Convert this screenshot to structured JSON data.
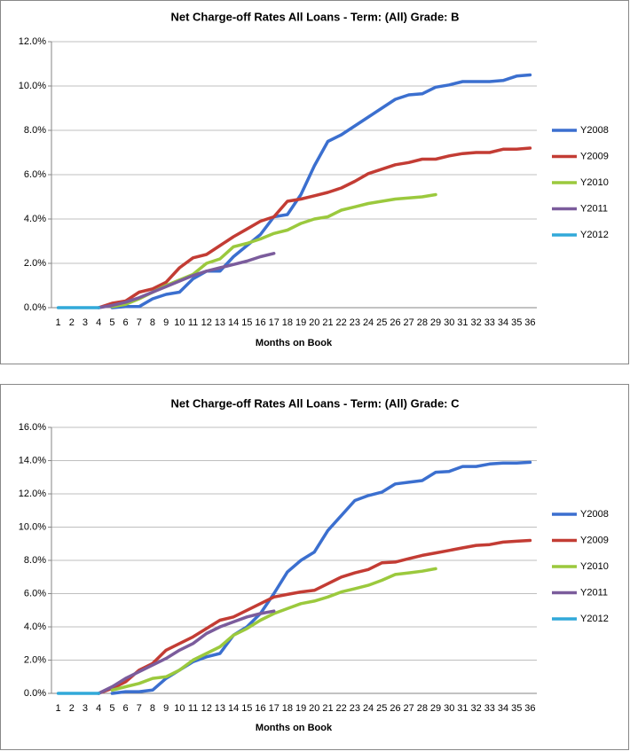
{
  "chart_data": [
    {
      "type": "line",
      "title": "Net Charge-off Rates   All Loans - Term: (All)  Grade: B",
      "x_label": "Months on Book",
      "categories": [
        1,
        2,
        3,
        4,
        5,
        6,
        7,
        8,
        9,
        10,
        11,
        12,
        13,
        14,
        15,
        16,
        17,
        18,
        19,
        20,
        21,
        22,
        23,
        24,
        25,
        26,
        27,
        28,
        29,
        30,
        31,
        32,
        33,
        34,
        35,
        36
      ],
      "ylim": [
        0,
        12
      ],
      "yticks": [
        {
          "value": 0,
          "label": "0.0%"
        },
        {
          "value": 2,
          "label": "2.0%"
        },
        {
          "value": 4,
          "label": "4.0%"
        },
        {
          "value": 6,
          "label": "6.0%"
        },
        {
          "value": 8,
          "label": "8.0%"
        },
        {
          "value": 10,
          "label": "10.0%"
        },
        {
          "value": 12,
          "label": "12.0%"
        }
      ],
      "grid": true,
      "legend": "right",
      "series": [
        {
          "name": "Y2008",
          "color": "#3b6fcf",
          "values": [
            null,
            null,
            null,
            null,
            0,
            0.05,
            0.05,
            0.4,
            0.6,
            0.7,
            1.3,
            1.65,
            1.65,
            2.3,
            2.8,
            3.3,
            4.1,
            4.2,
            5.1,
            6.4,
            7.5,
            7.8,
            8.2,
            8.6,
            9.0,
            9.4,
            9.6,
            9.65,
            9.95,
            10.05,
            10.2,
            10.2,
            10.2,
            10.25,
            10.45,
            10.5
          ]
        },
        {
          "name": "Y2009",
          "color": "#c33c34",
          "values": [
            null,
            null,
            null,
            0,
            0.2,
            0.3,
            0.7,
            0.85,
            1.15,
            1.8,
            2.25,
            2.4,
            2.8,
            3.2,
            3.55,
            3.9,
            4.1,
            4.8,
            4.9,
            5.05,
            5.2,
            5.4,
            5.7,
            6.05,
            6.25,
            6.45,
            6.55,
            6.7,
            6.7,
            6.85,
            6.95,
            7.0,
            7.0,
            7.15,
            7.15,
            7.2
          ]
        },
        {
          "name": "Y2010",
          "color": "#9bc93d",
          "values": [
            null,
            null,
            null,
            null,
            0.05,
            0.15,
            0.4,
            0.7,
            1.0,
            1.25,
            1.5,
            2.0,
            2.2,
            2.75,
            2.9,
            3.1,
            3.35,
            3.5,
            3.8,
            4.0,
            4.1,
            4.4,
            4.55,
            4.7,
            4.8,
            4.9,
            4.95,
            5.0,
            5.1,
            null,
            null,
            null,
            null,
            null,
            null,
            null
          ]
        },
        {
          "name": "Y2011",
          "color": "#7b5c9c",
          "values": [
            null,
            null,
            null,
            0,
            0.1,
            0.25,
            0.45,
            0.7,
            0.95,
            1.2,
            1.45,
            1.65,
            1.8,
            1.95,
            2.1,
            2.3,
            2.45,
            null,
            null,
            null,
            null,
            null,
            null,
            null,
            null,
            null,
            null,
            null,
            null,
            null,
            null,
            null,
            null,
            null,
            null,
            null
          ]
        },
        {
          "name": "Y2012",
          "color": "#31a9d9",
          "values": [
            0,
            0,
            0,
            0,
            null,
            null,
            null,
            null,
            null,
            null,
            null,
            null,
            null,
            null,
            null,
            null,
            null,
            null,
            null,
            null,
            null,
            null,
            null,
            null,
            null,
            null,
            null,
            null,
            null,
            null,
            null,
            null,
            null,
            null,
            null,
            null
          ]
        }
      ]
    },
    {
      "type": "line",
      "title": "Net Charge-off Rates   All Loans - Term: (All)  Grade: C",
      "x_label": "Months on Book",
      "categories": [
        1,
        2,
        3,
        4,
        5,
        6,
        7,
        8,
        9,
        10,
        11,
        12,
        13,
        14,
        15,
        16,
        17,
        18,
        19,
        20,
        21,
        22,
        23,
        24,
        25,
        26,
        27,
        28,
        29,
        30,
        31,
        32,
        33,
        34,
        35,
        36
      ],
      "ylim": [
        0,
        16
      ],
      "yticks": [
        {
          "value": 0,
          "label": "0.0%"
        },
        {
          "value": 2,
          "label": "2.0%"
        },
        {
          "value": 4,
          "label": "4.0%"
        },
        {
          "value": 6,
          "label": "6.0%"
        },
        {
          "value": 8,
          "label": "8.0%"
        },
        {
          "value": 10,
          "label": "10.0%"
        },
        {
          "value": 12,
          "label": "12.0%"
        },
        {
          "value": 14,
          "label": "14.0%"
        },
        {
          "value": 16,
          "label": "16.0%"
        }
      ],
      "grid": true,
      "legend": "right",
      "series": [
        {
          "name": "Y2008",
          "color": "#3b6fcf",
          "values": [
            null,
            null,
            null,
            null,
            0,
            0.1,
            0.1,
            0.2,
            0.9,
            1.4,
            1.9,
            2.2,
            2.4,
            3.5,
            4.0,
            4.8,
            6.0,
            7.3,
            8.0,
            8.5,
            9.8,
            10.7,
            11.6,
            11.9,
            12.1,
            12.6,
            12.7,
            12.8,
            13.3,
            13.35,
            13.65,
            13.65,
            13.8,
            13.85,
            13.85,
            13.9
          ]
        },
        {
          "name": "Y2009",
          "color": "#c33c34",
          "values": [
            null,
            null,
            null,
            0,
            0.3,
            0.7,
            1.4,
            1.8,
            2.6,
            3.0,
            3.4,
            3.9,
            4.4,
            4.6,
            5.0,
            5.4,
            5.8,
            5.95,
            6.1,
            6.2,
            6.6,
            7.0,
            7.25,
            7.45,
            7.85,
            7.9,
            8.1,
            8.3,
            8.45,
            8.6,
            8.75,
            8.9,
            8.95,
            9.1,
            9.15,
            9.2
          ]
        },
        {
          "name": "Y2010",
          "color": "#9bc93d",
          "values": [
            null,
            null,
            null,
            null,
            0.2,
            0.4,
            0.6,
            0.9,
            1.0,
            1.4,
            2.0,
            2.4,
            2.8,
            3.5,
            3.9,
            4.4,
            4.8,
            5.1,
            5.4,
            5.55,
            5.8,
            6.1,
            6.3,
            6.5,
            6.8,
            7.15,
            7.25,
            7.35,
            7.5,
            null,
            null,
            null,
            null,
            null,
            null,
            null
          ]
        },
        {
          "name": "Y2011",
          "color": "#7b5c9c",
          "values": [
            null,
            null,
            null,
            0,
            0.4,
            0.9,
            1.3,
            1.7,
            2.1,
            2.6,
            3.0,
            3.6,
            4.0,
            4.3,
            4.6,
            4.8,
            4.95,
            null,
            null,
            null,
            null,
            null,
            null,
            null,
            null,
            null,
            null,
            null,
            null,
            null,
            null,
            null,
            null,
            null,
            null,
            null
          ]
        },
        {
          "name": "Y2012",
          "color": "#31a9d9",
          "values": [
            0,
            0,
            0,
            0,
            null,
            null,
            null,
            null,
            null,
            null,
            null,
            null,
            null,
            null,
            null,
            null,
            null,
            null,
            null,
            null,
            null,
            null,
            null,
            null,
            null,
            null,
            null,
            null,
            null,
            null,
            null,
            null,
            null,
            null,
            null,
            null
          ]
        }
      ]
    }
  ]
}
